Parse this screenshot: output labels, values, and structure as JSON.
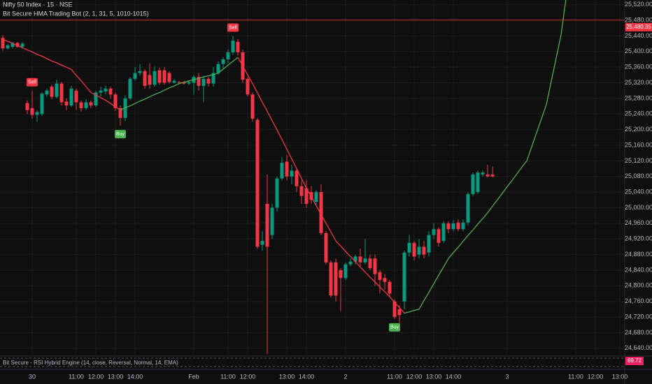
{
  "chart_data": {
    "type": "candlestick",
    "title": "Nifty 50 Index · 15 · NSE",
    "subtitle": "Bit Secure HMA Trading Bot (2, 1, 31, 5, 1010-1015)",
    "categories": [
      null,
      null,
      null,
      null,
      null,
      null,
      "30",
      null,
      null,
      null,
      null,
      null,
      null,
      null,
      null,
      "11:00",
      null,
      null,
      null,
      "12:00",
      null,
      null,
      null,
      "13:00",
      null,
      null,
      null,
      "14:00",
      null,
      null,
      null,
      null,
      null,
      null,
      null,
      null,
      null,
      null,
      null,
      "Feb",
      null,
      null,
      null,
      null,
      null,
      null,
      "11:00",
      null,
      null,
      null,
      "12:00",
      null,
      null,
      null,
      null,
      null,
      null,
      null,
      "13:00",
      null,
      null,
      null,
      "14:00",
      null,
      null,
      null,
      null,
      null,
      null,
      null,
      "2",
      null,
      null,
      null,
      null,
      null,
      null,
      null,
      null,
      null,
      "11:00",
      null,
      null,
      null,
      "12:00",
      null,
      null,
      null,
      "13:00",
      null,
      null,
      null,
      "14:00",
      null,
      null,
      null,
      null,
      null,
      null,
      null,
      null,
      null,
      null,
      "3",
      null,
      null,
      null,
      null,
      null,
      null,
      null,
      null,
      null,
      null,
      null,
      null,
      null,
      "11:00",
      null,
      null,
      null,
      "12:00",
      null,
      null,
      null,
      null,
      "13:00"
    ],
    "open": [
      25435,
      25408,
      25412,
      25422,
      25412,
      25268,
      25255,
      25238,
      25240,
      25290,
      25310,
      25284,
      25318,
      25272,
      25262,
      25300,
      25270,
      25255,
      25270,
      25262,
      25295,
      25298,
      25305,
      25290,
      25255,
      25230,
      25280,
      25330,
      25345,
      25350,
      25340,
      25315,
      25352,
      25352,
      25345,
      25320,
      25322,
      25322,
      25318,
      25320,
      25335,
      25312,
      25330,
      25318,
      25345,
      25368,
      25380,
      25398,
      25425,
      25398,
      25330,
      25290,
      25225,
      24905,
      25010,
      24930,
      25000,
      25075,
      25118,
      25080,
      25095,
      25055,
      25050,
      25040,
      25015,
      25040,
      24935,
      24860,
      24860,
      24840,
      24820,
      24855,
      24862,
      24875,
      24860,
      24870,
      24870,
      24835,
      24820,
      24810,
      24760,
      24740,
      24760,
      24885,
      24910,
      24880,
      24900,
      24885,
      24930,
      24945,
      24915,
      24960,
      24945,
      24962,
      24945,
      24962,
      25035,
      25040,
      25085,
      25085,
      25085,
      null,
      null,
      null,
      null,
      null,
      null,
      null,
      null,
      null,
      null,
      null,
      null,
      null,
      null,
      null,
      null,
      null,
      null,
      null,
      null,
      null,
      null,
      null,
      null,
      null,
      null
    ],
    "high": [
      25442,
      25420,
      25425,
      25425,
      25424,
      25275,
      25300,
      25250,
      25296,
      25305,
      25315,
      25328,
      25322,
      25280,
      25312,
      25305,
      25275,
      25278,
      25275,
      25300,
      25310,
      25312,
      25310,
      25295,
      25262,
      25288,
      25335,
      25360,
      25368,
      25355,
      25370,
      25362,
      25358,
      25360,
      25350,
      25330,
      25325,
      25325,
      25326,
      25340,
      25345,
      25338,
      25335,
      25360,
      25375,
      25385,
      25405,
      25440,
      25432,
      25405,
      25335,
      25295,
      25230,
      24940,
      25085,
      25010,
      25080,
      25130,
      25135,
      25110,
      25100,
      25070,
      25070,
      25055,
      25045,
      25060,
      24940,
      24865,
      24870,
      24845,
      24860,
      24870,
      24880,
      24895,
      24920,
      24880,
      24880,
      24840,
      24830,
      24815,
      24765,
      24750,
      24890,
      24930,
      24915,
      24920,
      24915,
      24940,
      24960,
      24950,
      24965,
      24965,
      24968,
      24970,
      24970,
      25040,
      25090,
      25095,
      25095,
      25110,
      25105,
      null,
      null,
      null,
      null,
      null,
      null,
      null,
      null,
      null,
      null,
      null,
      null,
      null,
      null,
      null,
      null,
      null,
      null,
      null,
      null,
      null,
      null,
      null,
      null,
      null,
      null
    ],
    "low": [
      25402,
      25405,
      25408,
      25410,
      25408,
      25240,
      25228,
      25220,
      25235,
      25285,
      25278,
      25280,
      25262,
      25250,
      25258,
      25250,
      25245,
      25250,
      25255,
      25258,
      25285,
      25290,
      25280,
      25248,
      25210,
      25222,
      25275,
      25325,
      25338,
      25305,
      25305,
      25310,
      25315,
      25315,
      25318,
      25318,
      25316,
      25315,
      25314,
      25290,
      25300,
      25270,
      25310,
      25310,
      25340,
      25355,
      25370,
      25392,
      25390,
      25320,
      25285,
      25220,
      24895,
      24890,
      24625,
      24920,
      24990,
      25070,
      25070,
      25060,
      25040,
      25010,
      25000,
      25010,
      25005,
      24930,
      24855,
      24770,
      24760,
      24735,
      24815,
      24850,
      24855,
      24850,
      24855,
      24840,
      24800,
      24780,
      24790,
      24770,
      24715,
      24705,
      24740,
      24875,
      24865,
      24870,
      24870,
      24875,
      24920,
      24900,
      24910,
      24935,
      24940,
      24940,
      24940,
      24955,
      25030,
      25035,
      25080,
      25078,
      25078,
      null,
      null,
      null,
      null,
      null,
      null,
      null,
      null,
      null,
      null,
      null,
      null,
      null,
      null,
      null,
      null,
      null,
      null,
      null,
      null,
      null,
      null,
      null,
      null,
      null,
      null
    ],
    "close": [
      25408,
      25416,
      25422,
      25412,
      25420,
      25250,
      25238,
      25245,
      25292,
      25300,
      25284,
      25318,
      25270,
      25262,
      25305,
      25270,
      25255,
      25270,
      25262,
      25295,
      25300,
      25305,
      25290,
      25255,
      25230,
      25280,
      25330,
      25345,
      25350,
      25312,
      25315,
      25350,
      25320,
      25320,
      25322,
      25325,
      25320,
      25318,
      25322,
      25335,
      25312,
      25330,
      25318,
      25345,
      25368,
      25380,
      25398,
      25428,
      25398,
      25328,
      25290,
      25228,
      24900,
      24915,
      24900,
      25000,
      25075,
      25115,
      25080,
      25095,
      25055,
      25030,
      25010,
      25020,
      25040,
      24935,
      24860,
      24775,
      24775,
      24820,
      24855,
      24862,
      24875,
      24860,
      24870,
      24845,
      24830,
      24815,
      24810,
      24780,
      24720,
      24725,
      24885,
      24910,
      24875,
      24900,
      24880,
      24930,
      24945,
      24910,
      24960,
      24945,
      24960,
      24945,
      24962,
      25035,
      25085,
      25090,
      25090,
      25080,
      25080,
      null,
      null,
      null,
      null,
      null,
      null,
      null,
      null,
      null,
      null,
      null,
      null,
      null,
      null,
      null,
      null,
      null,
      null,
      null,
      null,
      null,
      null,
      null,
      null,
      null,
      null
    ],
    "up_color": "#089981",
    "down_color": "#f23645",
    "overlay": {
      "values": [
        25432,
        25426,
        25421,
        25415,
        25410,
        25404,
        25399,
        25393,
        25388,
        25382,
        25376,
        25371,
        25365,
        25360,
        25354,
        25339,
        25325,
        25310,
        25295,
        25288,
        25282,
        25275,
        25267,
        25258,
        25250,
        25256,
        25261,
        25267,
        25273,
        25278,
        25284,
        25290,
        25295,
        25301,
        25307,
        25312,
        25318,
        25321,
        25325,
        25328,
        25331,
        25335,
        25338,
        25341,
        25345,
        25355,
        25365,
        25375,
        25385,
        25363,
        25340,
        25318,
        25294,
        25270,
        25247,
        25223,
        25199,
        25175,
        25150,
        25125,
        25100,
        25075,
        25050,
        25028,
        25005,
        24983,
        24960,
        24938,
        24915,
        24902,
        24888,
        24875,
        24862,
        24848,
        24835,
        24822,
        24810,
        24797,
        24785,
        24772,
        24758,
        24744,
        24730,
        24733,
        24737,
        24740,
        24762,
        24783,
        24805,
        24827,
        24848,
        24870,
        24885,
        24899,
        24914,
        24929,
        24943,
        24958,
        24972,
        24987,
        25004,
        25020,
        25037,
        25054,
        25070,
        25087,
        25104,
        25120,
        25156,
        25192,
        25228,
        25264,
        25324,
        25383,
        25443,
        25535,
        null,
        null,
        null,
        null,
        null,
        null,
        null,
        null,
        null,
        null,
        null
      ],
      "rising_color": "#4caf50",
      "falling_color": "#f23645"
    },
    "signals": [
      null,
      null,
      null,
      null,
      null,
      null,
      "Sell",
      null,
      null,
      null,
      null,
      null,
      null,
      null,
      null,
      null,
      null,
      null,
      null,
      null,
      null,
      null,
      null,
      null,
      "Buy",
      null,
      null,
      null,
      null,
      null,
      null,
      null,
      null,
      null,
      null,
      null,
      null,
      null,
      null,
      null,
      null,
      null,
      null,
      null,
      null,
      null,
      null,
      "Sell",
      null,
      null,
      null,
      null,
      null,
      null,
      null,
      null,
      null,
      null,
      null,
      null,
      null,
      null,
      null,
      null,
      null,
      null,
      null,
      null,
      null,
      null,
      null,
      null,
      null,
      null,
      null,
      null,
      null,
      null,
      null,
      null,
      "Buy",
      null,
      null,
      null,
      null,
      null,
      null,
      null,
      null,
      null,
      null,
      null,
      null,
      null,
      null,
      null,
      null,
      null,
      null,
      null,
      null,
      null,
      null,
      null,
      null,
      null,
      null,
      null,
      null,
      null,
      null,
      null,
      null,
      null,
      null,
      null,
      null,
      null,
      null,
      null,
      null,
      null,
      null,
      null,
      null,
      null,
      null
    ],
    "sell_color": "#f23645",
    "buy_color": "#4caf50",
    "ylim": [
      24620,
      25532
    ],
    "yticks": [
      {
        "value": 25520,
        "label": "25,520.00"
      },
      {
        "value": 25480,
        "label": "25,480.00"
      },
      {
        "value": 25440,
        "label": "25,440.00"
      },
      {
        "value": 25400,
        "label": "25,400.00"
      },
      {
        "value": 25360,
        "label": "25,360.00"
      },
      {
        "value": 25320,
        "label": "25,320.00"
      },
      {
        "value": 25280,
        "label": "25,280.00"
      },
      {
        "value": 25240,
        "label": "25,240.00"
      },
      {
        "value": 25200,
        "label": "25,200.00"
      },
      {
        "value": 25160,
        "label": "25,160.00"
      },
      {
        "value": 25120,
        "label": "25,120.00"
      },
      {
        "value": 25080,
        "label": "25,080.00"
      },
      {
        "value": 25040,
        "label": "25,040.00"
      },
      {
        "value": 25000,
        "label": "25,000.00"
      },
      {
        "value": 24960,
        "label": "24,960.00"
      },
      {
        "value": 24920,
        "label": "24,920.00"
      },
      {
        "value": 24880,
        "label": "24,880.00"
      },
      {
        "value": 24840,
        "label": "24,840.00"
      },
      {
        "value": 24800,
        "label": "24,800.00"
      },
      {
        "value": 24760,
        "label": "24,760.00"
      },
      {
        "value": 24720,
        "label": "24,720.00"
      },
      {
        "value": 24680,
        "label": "24,680.00"
      },
      {
        "value": 24640,
        "label": "24,640.00"
      }
    ],
    "price_line": {
      "value": 25480.35,
      "label": "25,480.35",
      "color": "#f23645"
    },
    "grid": true,
    "indicator": {
      "title": "Bit Secure - RSI Hybrid Engine (14, close, Reversal, Normal, 14, EMA)",
      "last_value": 69.72,
      "color": "#e91e63"
    }
  }
}
